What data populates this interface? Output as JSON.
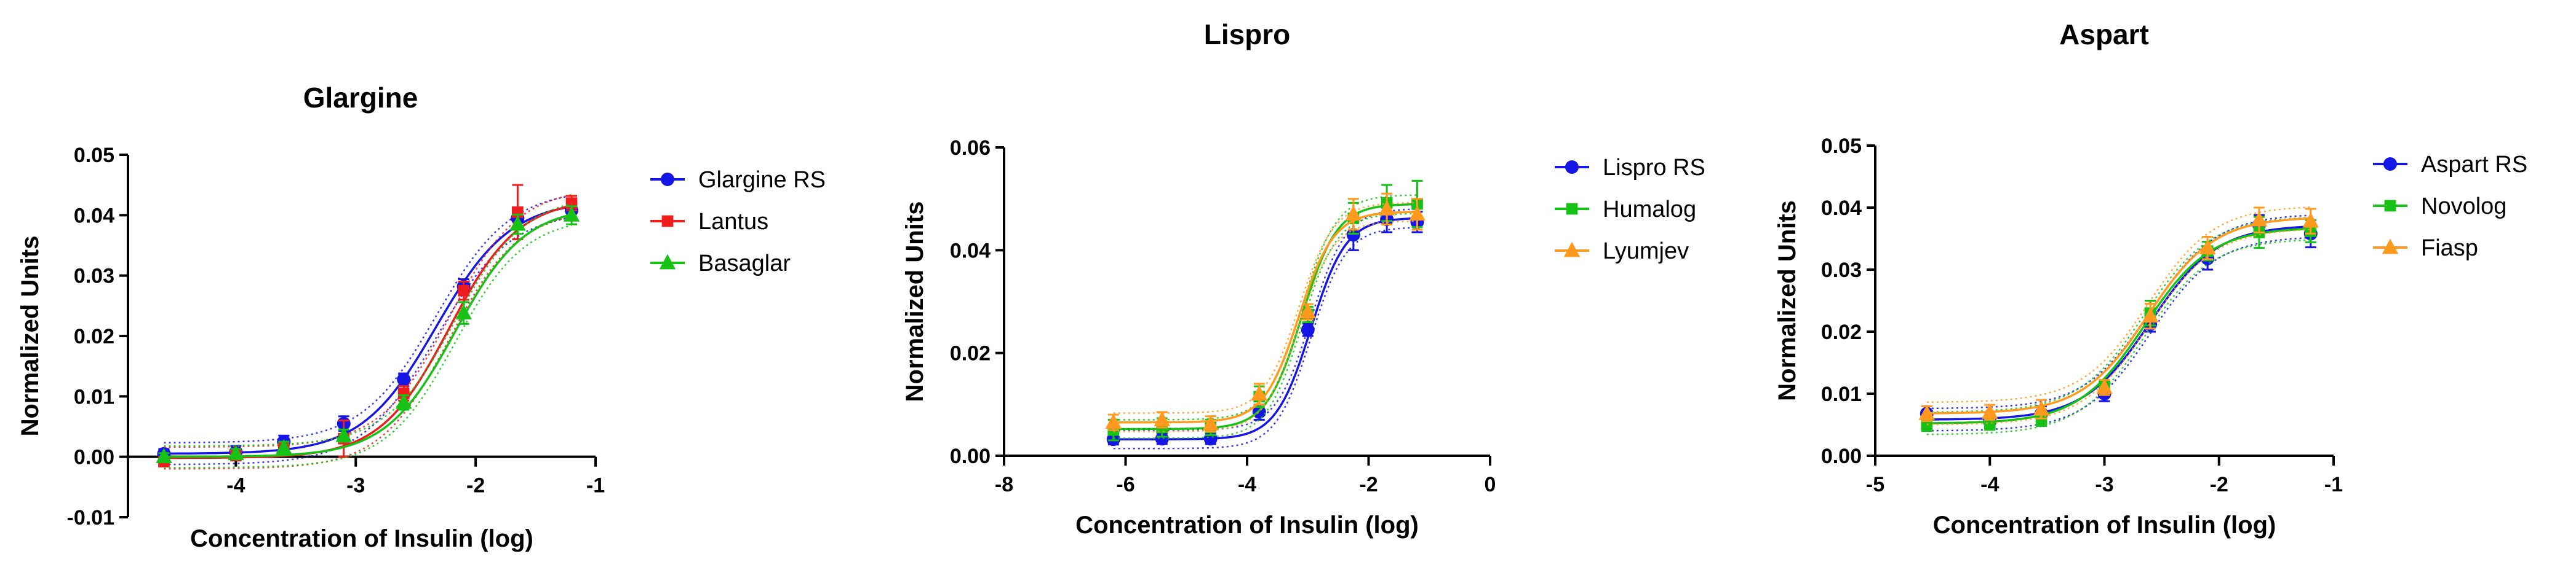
{
  "colors": {
    "blue": "#1515e6",
    "red": "#ee1c1c",
    "green": "#15c215",
    "orange": "#ff9a1f"
  },
  "chart_data": [
    {
      "type": "scatter",
      "title": "Glargine",
      "xlabel": "Concentration of Insulin (log)",
      "ylabel": "Normalized Units",
      "xlim": [
        -4.9,
        -1.0
      ],
      "ylim": [
        -0.01,
        0.05
      ],
      "xticks": [
        -4,
        -3,
        -2,
        -1
      ],
      "xtick_labels": [
        "-4",
        "-3",
        "-2",
        "-1"
      ],
      "yticks": [
        -0.01,
        0,
        0.01,
        0.02,
        0.03,
        0.04,
        0.05
      ],
      "ytick_labels": [
        "-0.01",
        "0.00",
        "0.01",
        "0.02",
        "0.03",
        "0.04",
        "0.05"
      ],
      "series": [
        {
          "name": "Glargine RS",
          "color": "blue",
          "marker": "circle",
          "ec50": -2.33,
          "bottom": 0.0005,
          "top": 0.0425,
          "hill": 1.4,
          "x": [
            -4.6,
            -4.0,
            -3.6,
            -3.1,
            -2.6,
            -2.1,
            -1.65,
            -1.2
          ],
          "y": [
            0.0005,
            0.0008,
            0.0025,
            0.0055,
            0.0128,
            0.0282,
            0.0395,
            0.0408
          ],
          "err": [
            0.0008,
            0.001,
            0.001,
            0.0012,
            0.001,
            0.0012,
            0.0016,
            0.0015
          ]
        },
        {
          "name": "Lantus",
          "color": "red",
          "marker": "square",
          "ec50": -2.22,
          "bottom": -0.0002,
          "top": 0.0428,
          "hill": 1.5,
          "x": [
            -4.6,
            -4.0,
            -3.6,
            -3.1,
            -2.6,
            -2.1,
            -1.65,
            -1.2
          ],
          "y": [
            -0.0008,
            0.0002,
            0.0012,
            0.003,
            0.0105,
            0.0275,
            0.0405,
            0.042
          ],
          "err": [
            0.0006,
            0.0008,
            0.001,
            0.003,
            0.0012,
            0.0015,
            0.0045,
            0.0012
          ]
        },
        {
          "name": "Basaglar",
          "color": "green",
          "marker": "triangle",
          "ec50": -2.17,
          "bottom": 0.0,
          "top": 0.0415,
          "hill": 1.5,
          "x": [
            -4.6,
            -4.0,
            -3.6,
            -3.1,
            -2.6,
            -2.1,
            -1.65,
            -1.2
          ],
          "y": [
            0.0,
            0.0005,
            0.0015,
            0.0035,
            0.009,
            0.0238,
            0.0385,
            0.04
          ],
          "err": [
            0.0006,
            0.0008,
            0.001,
            0.001,
            0.0012,
            0.0018,
            0.0016,
            0.0015
          ]
        }
      ]
    },
    {
      "type": "scatter",
      "title": "Lispro",
      "xlabel": "Concentration of Insulin (log)",
      "ylabel": "Normalized Units",
      "xlim": [
        -8,
        0
      ],
      "ylim": [
        0,
        0.06
      ],
      "xticks": [
        -8,
        -6,
        -4,
        -2,
        0
      ],
      "xtick_labels": [
        "-8",
        "-6",
        "-4",
        "-2",
        "0"
      ],
      "yticks": [
        0,
        0.02,
        0.04,
        0.06
      ],
      "ytick_labels": [
        "0.00",
        "0.02",
        "0.04",
        "0.06"
      ],
      "series": [
        {
          "name": "Lispro RS",
          "color": "blue",
          "marker": "circle",
          "ec50": -2.95,
          "bottom": 0.0032,
          "top": 0.0463,
          "hill": 1.5,
          "x": [
            -6.2,
            -5.4,
            -4.6,
            -3.8,
            -3.0,
            -2.25,
            -1.7,
            -1.2
          ],
          "y": [
            0.0032,
            0.0033,
            0.0033,
            0.0085,
            0.0245,
            0.043,
            0.046,
            0.0455
          ],
          "err": [
            0.001,
            0.001,
            0.001,
            0.0015,
            0.0012,
            0.003,
            0.0025,
            0.002
          ]
        },
        {
          "name": "Humalog",
          "color": "green",
          "marker": "square",
          "ec50": -3.1,
          "bottom": 0.0052,
          "top": 0.049,
          "hill": 1.5,
          "x": [
            -6.2,
            -5.4,
            -4.6,
            -3.8,
            -3.0,
            -2.25,
            -1.7,
            -1.2
          ],
          "y": [
            0.005,
            0.0055,
            0.0055,
            0.0115,
            0.0275,
            0.0462,
            0.0492,
            0.049
          ],
          "err": [
            0.002,
            0.0018,
            0.0015,
            0.002,
            0.0015,
            0.003,
            0.0035,
            0.0045
          ]
        },
        {
          "name": "Lyumjev",
          "color": "orange",
          "marker": "triangle",
          "ec50": -3.15,
          "bottom": 0.0065,
          "top": 0.0475,
          "hill": 1.5,
          "x": [
            -6.2,
            -5.4,
            -4.6,
            -3.8,
            -3.0,
            -2.25,
            -1.7,
            -1.2
          ],
          "y": [
            0.0065,
            0.007,
            0.0062,
            0.012,
            0.028,
            0.047,
            0.048,
            0.047
          ],
          "err": [
            0.0015,
            0.0015,
            0.0015,
            0.002,
            0.0015,
            0.003,
            0.003,
            0.003
          ]
        }
      ]
    },
    {
      "type": "scatter",
      "title": "Aspart",
      "xlabel": "Concentration of Insulin (log)",
      "ylabel": "Normalized Units",
      "xlim": [
        -5,
        -1
      ],
      "ylim": [
        0,
        0.05
      ],
      "xticks": [
        -5,
        -4,
        -3,
        -2,
        -1
      ],
      "xtick_labels": [
        "-5",
        "-4",
        "-3",
        "-2",
        "-1"
      ],
      "yticks": [
        0,
        0.01,
        0.02,
        0.03,
        0.04,
        0.05
      ],
      "ytick_labels": [
        "0.00",
        "0.01",
        "0.02",
        "0.03",
        "0.04",
        "0.05"
      ],
      "series": [
        {
          "name": "Aspart RS",
          "color": "blue",
          "marker": "circle",
          "ec50": -2.6,
          "bottom": 0.0058,
          "top": 0.0372,
          "hill": 1.5,
          "x": [
            -4.55,
            -4.0,
            -3.55,
            -3.0,
            -2.6,
            -2.1,
            -1.65,
            -1.2
          ],
          "y": [
            0.0068,
            0.0055,
            0.0068,
            0.01,
            0.0212,
            0.0318,
            0.0372,
            0.0358
          ],
          "err": [
            0.0012,
            0.001,
            0.0012,
            0.0012,
            0.0012,
            0.0018,
            0.0016,
            0.0022
          ]
        },
        {
          "name": "Novolog",
          "color": "green",
          "marker": "square",
          "ec50": -2.65,
          "bottom": 0.0052,
          "top": 0.0368,
          "hill": 1.5,
          "x": [
            -4.55,
            -4.0,
            -3.55,
            -3.0,
            -2.6,
            -2.1,
            -1.65,
            -1.2
          ],
          "y": [
            0.005,
            0.0052,
            0.0058,
            0.0112,
            0.023,
            0.033,
            0.036,
            0.0362
          ],
          "err": [
            0.001,
            0.001,
            0.001,
            0.001,
            0.002,
            0.0015,
            0.0025,
            0.0018
          ]
        },
        {
          "name": "Fiasp",
          "color": "orange",
          "marker": "triangle",
          "ec50": -2.62,
          "bottom": 0.0068,
          "top": 0.0385,
          "hill": 1.5,
          "x": [
            -4.55,
            -4.0,
            -3.55,
            -3.0,
            -2.6,
            -2.1,
            -1.65,
            -1.2
          ],
          "y": [
            0.0068,
            0.007,
            0.0075,
            0.011,
            0.0225,
            0.0335,
            0.038,
            0.0378
          ],
          "err": [
            0.0012,
            0.0012,
            0.0015,
            0.0012,
            0.002,
            0.0018,
            0.002,
            0.002
          ]
        }
      ]
    }
  ]
}
